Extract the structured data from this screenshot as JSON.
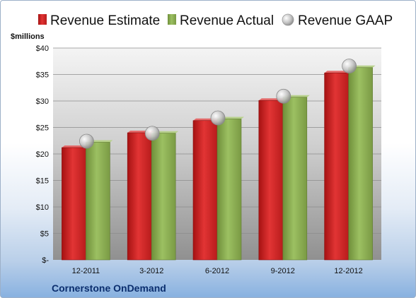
{
  "chart_data": {
    "type": "bar",
    "categories": [
      "12-2011",
      "3-2012",
      "6-2012",
      "9-2012",
      "12-2012"
    ],
    "series": [
      {
        "name": "Revenue Estimate",
        "values": [
          21.2,
          24.0,
          26.3,
          30.1,
          35.3
        ],
        "color": "#d42a2a"
      },
      {
        "name": "Revenue Actual",
        "values": [
          22.2,
          23.9,
          26.6,
          30.7,
          36.3
        ],
        "color": "#8fb255"
      }
    ],
    "markers": {
      "name": "Revenue GAAP",
      "values": [
        22.4,
        23.9,
        26.8,
        30.9,
        36.6
      ],
      "color": "#c8c8c8"
    },
    "ylabel": "$millions",
    "ylim": [
      0,
      40
    ],
    "yticks": [
      "$-",
      "$5",
      "$10",
      "$15",
      "$20",
      "$25",
      "$30",
      "$35",
      "$40"
    ],
    "grid": true,
    "legend": "top",
    "company": "Cornerstone OnDemand"
  }
}
